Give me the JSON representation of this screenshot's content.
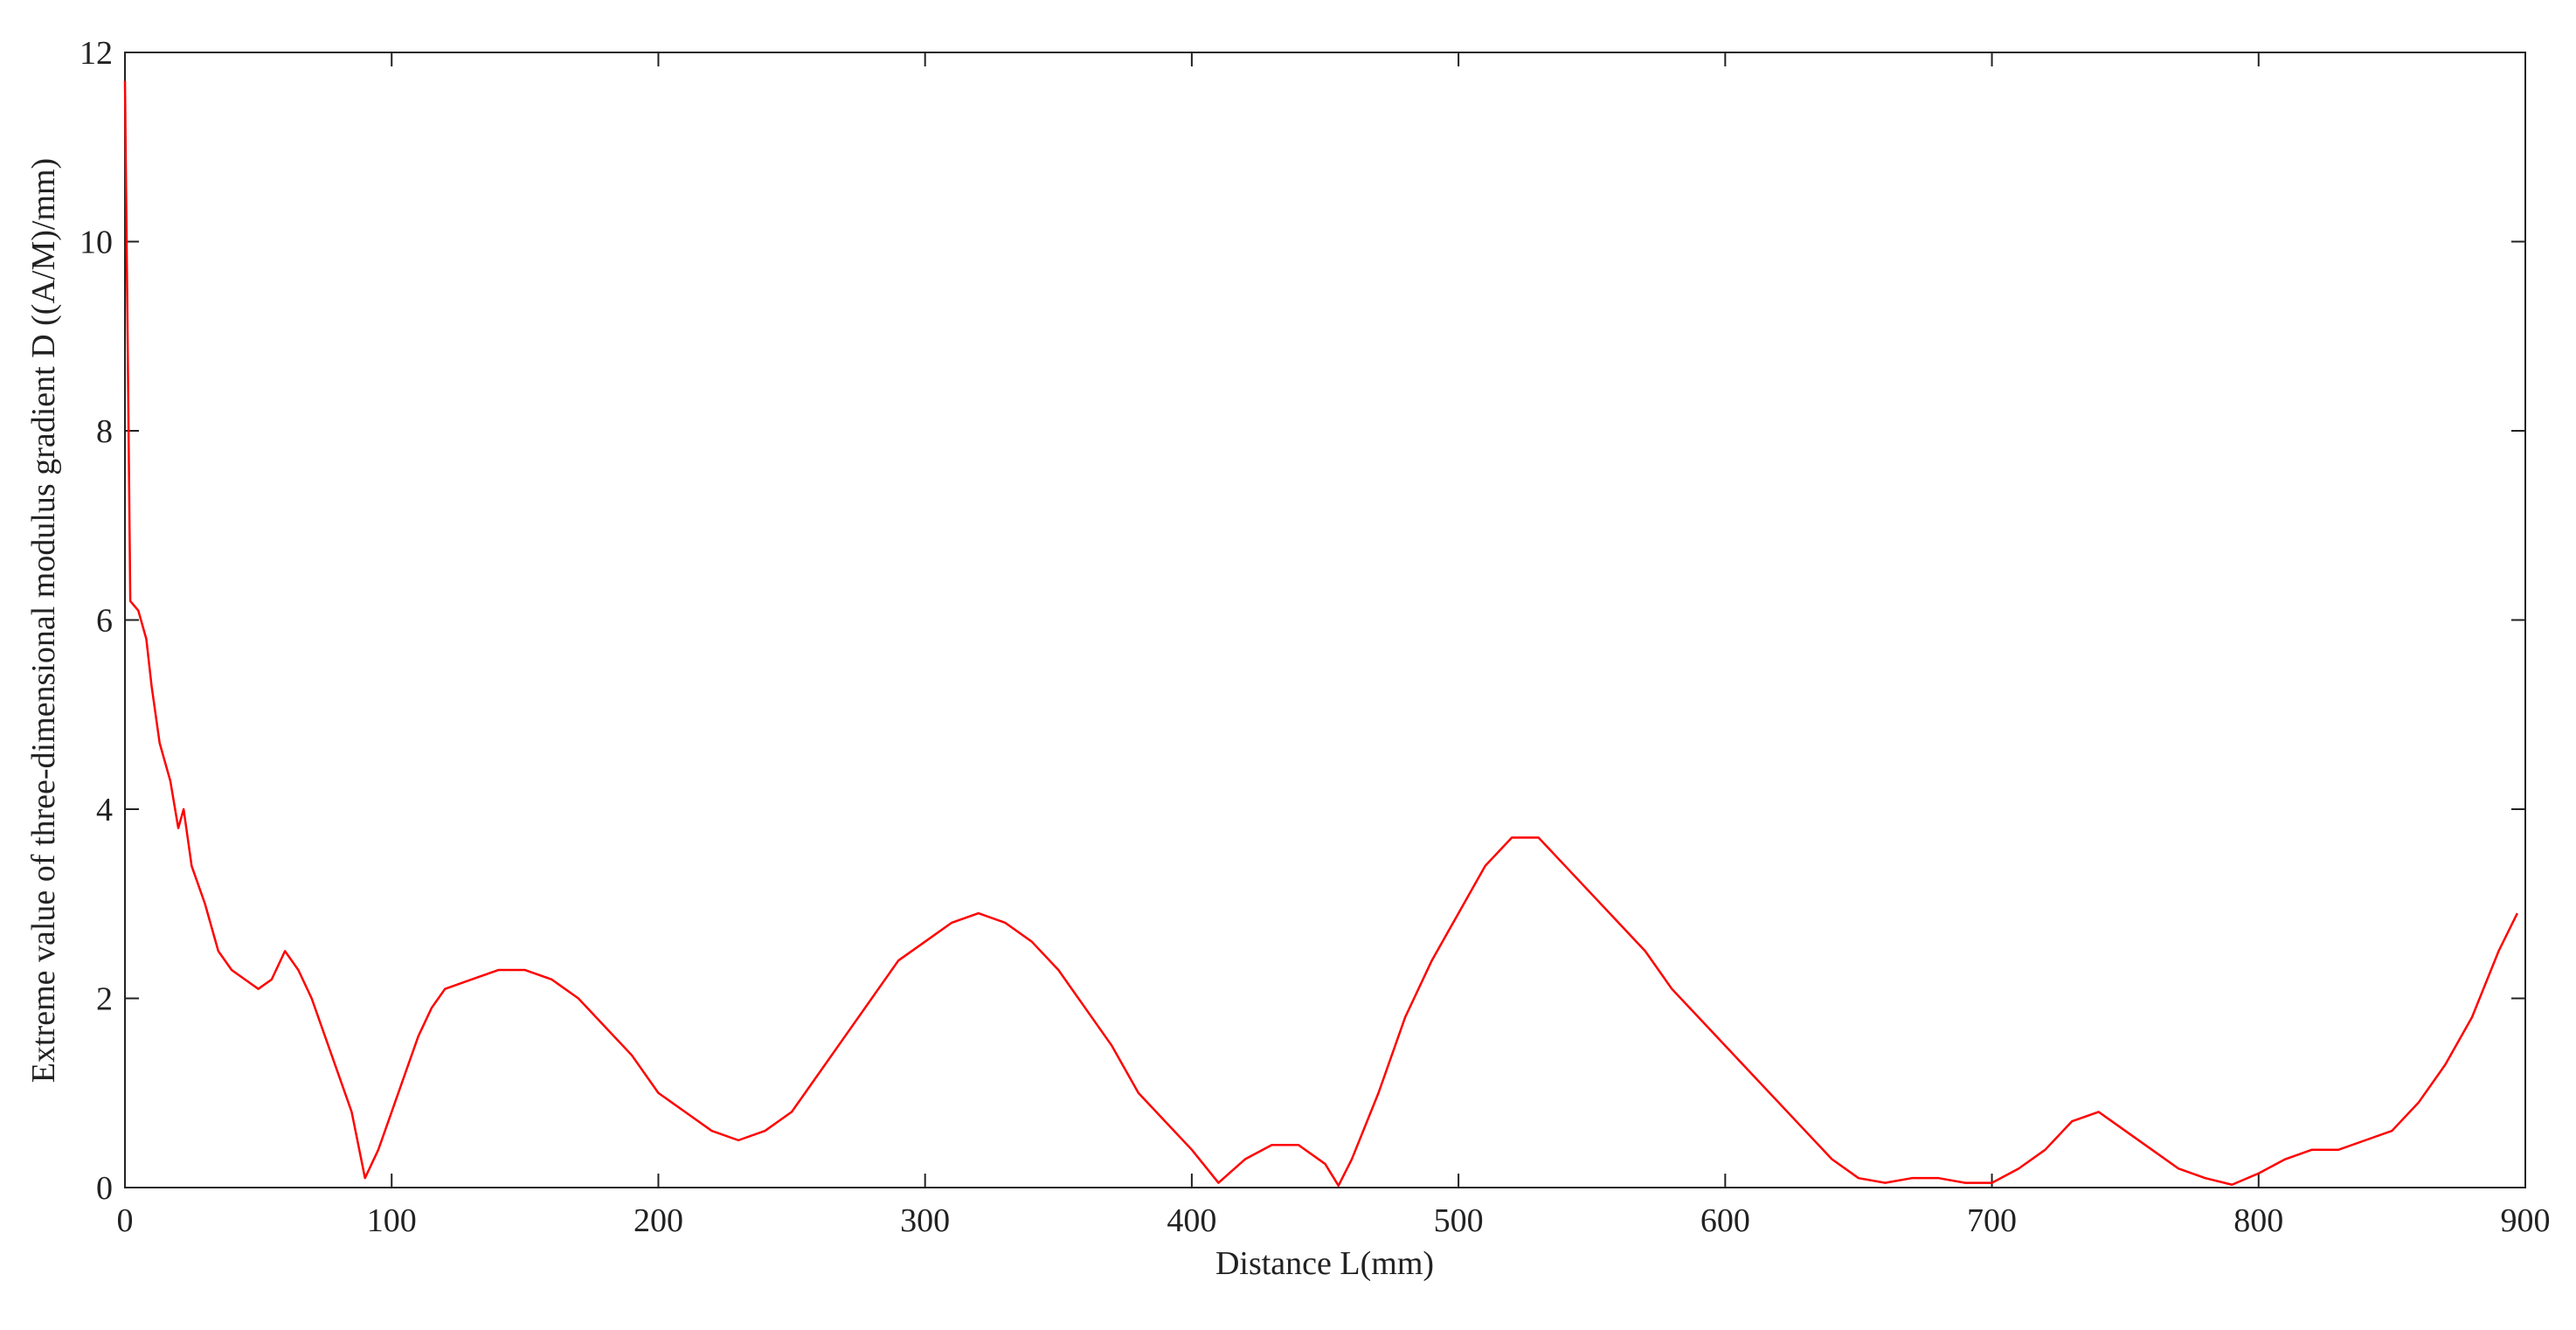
{
  "chart_data": {
    "type": "line",
    "x_label": "Distance L(mm)",
    "y_label": "Extreme value of three-dimensional modulus gradient D ((A/M)/mm)",
    "xlim": [
      0,
      900
    ],
    "xticks": [
      0,
      100,
      200,
      300,
      400,
      500,
      600,
      700,
      800,
      900
    ],
    "ylim": [
      0,
      12
    ],
    "yticks": [
      0,
      2,
      4,
      6,
      8,
      10,
      12
    ],
    "series": [
      {
        "color": "#ff0000",
        "x": [
          0,
          1,
          2,
          5,
          8,
          10,
          13,
          17,
          20,
          22,
          25,
          30,
          35,
          40,
          45,
          50,
          55,
          60,
          65,
          70,
          75,
          80,
          85,
          90,
          95,
          100,
          105,
          110,
          115,
          120,
          130,
          140,
          150,
          160,
          170,
          180,
          190,
          200,
          210,
          220,
          230,
          240,
          250,
          260,
          270,
          280,
          290,
          300,
          310,
          320,
          330,
          340,
          350,
          360,
          370,
          380,
          390,
          400,
          410,
          420,
          430,
          440,
          450,
          455,
          460,
          470,
          480,
          490,
          500,
          510,
          520,
          530,
          540,
          550,
          560,
          570,
          580,
          590,
          600,
          610,
          620,
          630,
          640,
          650,
          660,
          670,
          680,
          690,
          700,
          710,
          720,
          730,
          740,
          750,
          760,
          770,
          780,
          790,
          800,
          810,
          820,
          830,
          840,
          850,
          860,
          870,
          880,
          890,
          897
        ],
        "values": [
          11.7,
          9,
          6.2,
          6.1,
          5.8,
          5.3,
          4.7,
          4.3,
          3.8,
          4.0,
          3.4,
          3.0,
          2.5,
          2.3,
          2.2,
          2.1,
          2.2,
          2.5,
          2.3,
          2.0,
          1.6,
          1.2,
          0.8,
          0.1,
          0.4,
          0.8,
          1.2,
          1.6,
          1.9,
          2.1,
          2.2,
          2.3,
          2.3,
          2.2,
          2.0,
          1.7,
          1.4,
          1.0,
          0.8,
          0.6,
          0.5,
          0.6,
          0.8,
          1.2,
          1.6,
          2.0,
          2.4,
          2.6,
          2.8,
          2.9,
          2.8,
          2.6,
          2.3,
          1.9,
          1.5,
          1.0,
          0.7,
          0.4,
          0.05,
          0.3,
          0.45,
          0.45,
          0.25,
          0.02,
          0.3,
          1.0,
          1.8,
          2.4,
          2.9,
          3.4,
          3.7,
          3.7,
          3.4,
          3.1,
          2.8,
          2.5,
          2.1,
          1.8,
          1.5,
          1.2,
          0.9,
          0.6,
          0.3,
          0.1,
          0.05,
          0.1,
          0.1,
          0.05,
          0.05,
          0.2,
          0.4,
          0.7,
          0.8,
          0.6,
          0.4,
          0.2,
          0.1,
          0.03,
          0.15,
          0.3,
          0.4,
          0.4,
          0.5,
          0.6,
          0.9,
          1.3,
          1.8,
          2.5,
          2.9
        ]
      }
    ]
  }
}
